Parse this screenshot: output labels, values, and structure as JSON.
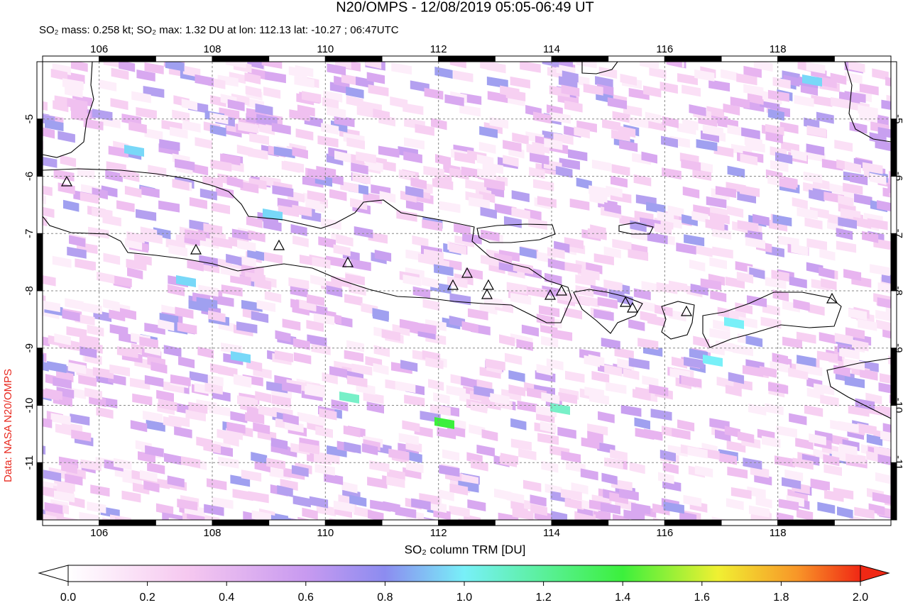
{
  "title": "N20/OMPS - 12/08/2019 05:05-06:49 UT",
  "subtitle": "SO₂ mass: 0.258 kt; SO₂ max: 1.32 DU at lon: 112.13 lat: -10.27 ; 06:47UTC",
  "credit": "Data: NASA N20/OMPS",
  "map": {
    "xlim": [
      105,
      120
    ],
    "xticks": [
      106,
      108,
      110,
      112,
      114,
      116,
      118
    ],
    "ylim": [
      -12,
      -4
    ],
    "yticks": [
      -5,
      -6,
      -7,
      -8,
      -9,
      -10,
      -11
    ]
  },
  "colorbar": {
    "title": "SO₂ column TRM [DU]",
    "lim": [
      0,
      2
    ],
    "ticks": [
      {
        "value": 0,
        "label": "0.0"
      },
      {
        "value": 0.2,
        "label": "0.2"
      },
      {
        "value": 0.4,
        "label": "0.4"
      },
      {
        "value": 0.6,
        "label": "0.6"
      },
      {
        "value": 0.8,
        "label": "0.8"
      },
      {
        "value": 1,
        "label": "1.0"
      },
      {
        "value": 1.2,
        "label": "1.2"
      },
      {
        "value": 1.4,
        "label": "1.4"
      },
      {
        "value": 1.6,
        "label": "1.6"
      },
      {
        "value": 1.8,
        "label": "1.8"
      },
      {
        "value": 2,
        "label": "2.0"
      }
    ]
  }
}
